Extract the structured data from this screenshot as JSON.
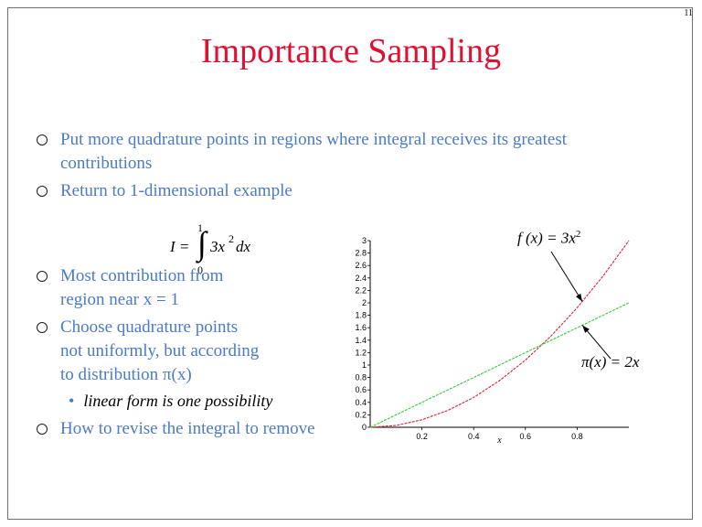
{
  "slide": {
    "number": "11",
    "title": "Importance Sampling",
    "bullets": [
      "Put more quadrature points in regions where integral receives its greatest",
      "contributions",
      "Return to 1-dimensional example",
      "Most contribution from",
      "region near x = 1",
      "Choose quadrature points",
      "not uniformly, but according",
      "to distribution π(x)",
      "How to revise the integral to remove"
    ],
    "sub_bullet": "linear form is one possibility"
  },
  "formula": {
    "lhs": "I =",
    "integral_sign": "∫",
    "upper_limit": "1",
    "lower_limit": "0",
    "integrand": "3x",
    "exponent": "2",
    "differential": "dx"
  },
  "annotations": {
    "f_label": "f (x) = 3x",
    "f_exponent": "2",
    "pi_label": "π(x) = 2x"
  },
  "chart_data": {
    "type": "line",
    "title": "",
    "xlabel": "x",
    "ylabel": "",
    "xlim": [
      0,
      1
    ],
    "ylim": [
      0,
      3
    ],
    "x_ticks": [
      "0.2",
      "0.4",
      "0.6",
      "0.8"
    ],
    "y_ticks": [
      "0",
      "0.2",
      "0.4",
      "0.6",
      "0.8",
      "1",
      "1.2",
      "1.4",
      "1.6",
      "1.8",
      "2",
      "2.2",
      "2.4",
      "2.6",
      "2.8",
      "3"
    ],
    "grid": false,
    "x": [
      0,
      0.1,
      0.2,
      0.3,
      0.4,
      0.5,
      0.6,
      0.7,
      0.8,
      0.9,
      1.0
    ],
    "series": [
      {
        "name": "f (x) = 3x²",
        "color": "#e0203a",
        "values": [
          0,
          0.03,
          0.12,
          0.27,
          0.48,
          0.75,
          1.08,
          1.47,
          1.92,
          2.43,
          3.0
        ]
      },
      {
        "name": "π(x) = 2x",
        "color": "#30d030",
        "values": [
          0,
          0.2,
          0.4,
          0.6,
          0.8,
          1.0,
          1.2,
          1.4,
          1.6,
          1.8,
          2.0
        ]
      }
    ]
  }
}
